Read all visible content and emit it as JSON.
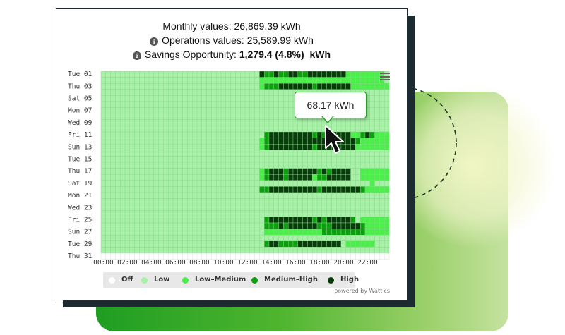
{
  "header": {
    "monthly_label": "Monthly values:",
    "monthly_value": "26,869.39 kWh",
    "operations_label": "Operations values:",
    "operations_value": "25,589.99  kWh",
    "savings_label": "Savings Opportunity:",
    "savings_value": "1,279.4  (4.8%)",
    "savings_unit": "kWh"
  },
  "tooltip": {
    "text": "68.17 kWh"
  },
  "powered_by": "powered by Wattics",
  "icons": {
    "menu": "hamburger-menu-icon",
    "info": "info-icon",
    "cursor": "mouse-pointer-icon"
  },
  "colors": {
    "off": "#ffffff",
    "low": "#a8f0a8",
    "low_medium": "#4cee4c",
    "medium_high": "#0e9f10",
    "high": "#083c0a"
  },
  "legend": [
    {
      "key": "off",
      "label": "Off",
      "color": "#ffffff"
    },
    {
      "key": "low",
      "label": "Low",
      "color": "#a8f0a8"
    },
    {
      "key": "low_medium",
      "label": "Low–Medium",
      "color": "#4cee4c"
    },
    {
      "key": "medium_high",
      "label": "Medium–High",
      "color": "#0e9f10"
    },
    {
      "key": "high",
      "label": "High",
      "color": "#083c0a"
    }
  ],
  "chart_data": {
    "type": "heatmap",
    "y_labels": [
      "Tue 01",
      "Thu 03",
      "Sat 05",
      "Mon 07",
      "Wed 09",
      "Fri 11",
      "Sun 13",
      "Tue 15",
      "Thu 17",
      "Sat 19",
      "Mon 21",
      "Wed 23",
      "Fri 25",
      "Sun 27",
      "Tue 29",
      "Thu 31"
    ],
    "x_labels": [
      "00:00",
      "02:00",
      "04:00",
      "06:00",
      "08:00",
      "10:00",
      "12:00",
      "14:00",
      "16:00",
      "18:00",
      "20:00",
      "22:00"
    ],
    "rows": [
      "111111111111111111111111111111111433433443344444444222222221",
      "111111111111111111111111111111111222222222222222222222222221",
      "111111111111111111111111111111111233344444443444444422222222",
      "111111111111111111111111111111111111111111111111111111111111",
      "111111111111111111111111111111111111111111111111111111111111",
      "111111111111111111111111111111111111111111111111111111111111",
      "111111111111111111111111111111111111111111111111111111111111",
      "111111111111111111111111111111111111111111111111111111111111",
      "111111111111111111111111111111111111111111111111111111111111",
      "111111111111111111111111111111111111111111111111111111111111",
      "111111111111111111111111111111111134444444443434444422343222",
      "111111111111111111111111111111111234444444444444444443222222",
      "111111111111111111111111111111111234444444443444444442222222",
      "111111111111111111111111111111111111111111111111111111111111",
      "111111111111111111111111111111111111111111111111111111111111",
      "111111111111111111111111111111111111111111111111111111111111",
      "111111111111111111111111111111111234443444444343444411222222",
      "111111111111111111111111111111111234443444442334444411222222",
      "111111111111111111111111111111111111111111111111111111112111",
      "111111111111111111111111111111111334444444444344444444322222",
      "111111111111111111111111111111111111111111111111111111111111",
      "111111111111111111111111111111111111111111111111111111111111",
      "111111111111111111111111111111111111111111111111111111111111",
      "111111111111111111111111111111111111111111111111111111111111",
      "111111111111111111111111111111111134444444443434444431222222",
      "111111111111111111111111111111111133343444444333444444322222",
      "111111111111111111111111111111111122222222222233333333322222",
      "111111111111111111111111111111111111111111111111111111111111",
      "111111111111111111111111111111111134433334444444441222222111",
      "111111111111111111111111111111111111111111111111111111111111"
    ]
  }
}
